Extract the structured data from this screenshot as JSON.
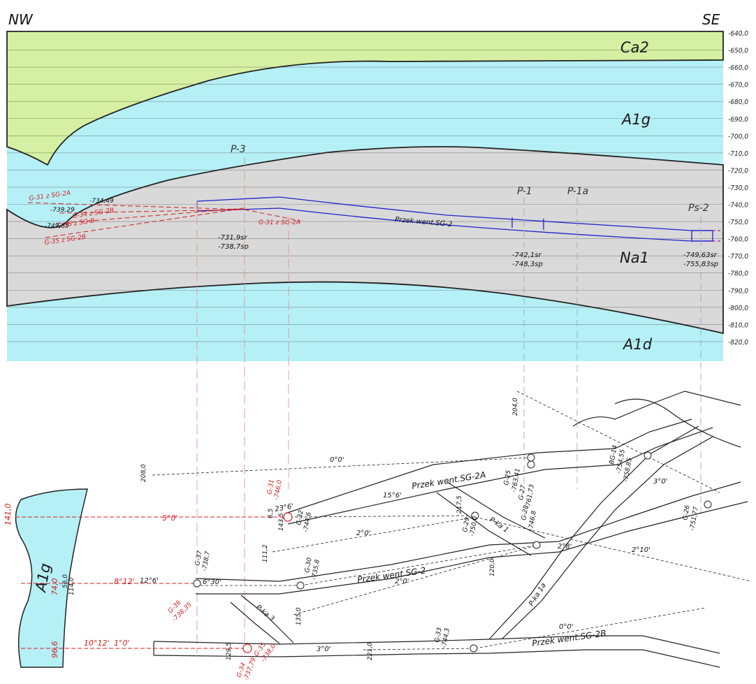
{
  "section": {
    "left_label": "NW",
    "right_label": "SE",
    "depth_ticks": [
      "-640,0",
      "-650,0",
      "-660,0",
      "-670,0",
      "-680,0",
      "-690,0",
      "-700,0",
      "-710,0",
      "-720,0",
      "-730,0",
      "-740,0",
      "-750,0",
      "-760,0",
      "-770,0",
      "-780,0",
      "-790,0",
      "-800,0",
      "-810,0",
      "-820,0"
    ],
    "layers": {
      "ca2": "Ca2",
      "a1g": "A1g",
      "na1": "Na1",
      "a1d": "A1d"
    },
    "points": {
      "p3": "P-3",
      "p1": "P-1",
      "p1a": "P-1a",
      "ps2": "Ps-2"
    },
    "gallery_label": "Przek went.SG-2",
    "elev_p3": [
      "-731,9sr",
      "-738,7sp"
    ],
    "elev_p1": [
      "-742,1sr",
      "-748,3sp"
    ],
    "elev_ps2": [
      "-749,63sr",
      "-755,83sp"
    ],
    "left_black": [
      "-734,49",
      "-739,29",
      "-749,85"
    ],
    "left_red": [
      "G-31 z SG-2A",
      "G-34 z SG-2B",
      "G-36 z SG-B",
      "G-35 z SG-2B",
      "G-31 z SG-2A"
    ]
  },
  "plan": {
    "salt_label": "A1g",
    "galleries": {
      "sg2a": "Przek went.SG-2A",
      "sg2": "Przek went.SG-2",
      "sg2b": "Przek went.SG-2B",
      "pka1": "P-ka 1",
      "pka1a": "P-ka 1a",
      "pka3": "P-ka 3"
    },
    "dist": {
      "d208": "208,0",
      "d204": "204,0",
      "d141": "141,0",
      "d740": "74,0",
      "d966": "96,6",
      "d111": "111,2",
      "d135": "135,0",
      "d120": "120,0",
      "d129": "129,5",
      "d221": "221,0",
      "d217": "217,5",
      "d143": "143,5",
      "d114": "114,0",
      "d560": "56,0",
      "d65": "6,5"
    },
    "angles": {
      "a0a": "0°0'",
      "a0b": "0°0'",
      "a5": "5°0'",
      "a15": "15°6'",
      "a2": "2°0'",
      "a2b": "2°0'",
      "a28": "2°8'",
      "a210": "2°10'",
      "a3a": "3°0'",
      "a3b": "3°0'",
      "a630": "6°30'",
      "a812": "8°12'",
      "a126": "12°6'",
      "a1012": "10°12'",
      "a10": "1°0'",
      "a23": "23°6'"
    },
    "benchmarks": {
      "g25": [
        "G-25",
        "-763,41"
      ],
      "g27": [
        "G-27",
        "-761,73"
      ],
      "g28": [
        "G-28",
        "-746,8"
      ],
      "bg14": [
        "BG-14",
        "-754,55",
        "-758,85"
      ],
      "g29": [
        "G-29",
        "-750,0"
      ],
      "g32": [
        "G-32",
        "-744,6"
      ],
      "g30": [
        "G-30",
        "-735,8"
      ],
      "g37": [
        "G-37",
        "-738,7"
      ],
      "g26": [
        "G-26",
        "-751,77"
      ],
      "g33": [
        "G-33",
        "-744,3"
      ],
      "g31": [
        "G-31",
        "-746,0"
      ],
      "g36": [
        "G-36",
        "-738,35"
      ],
      "g34": [
        "G-34",
        "-737,79"
      ],
      "g35": [
        "G-35",
        "-738,0"
      ]
    }
  }
}
